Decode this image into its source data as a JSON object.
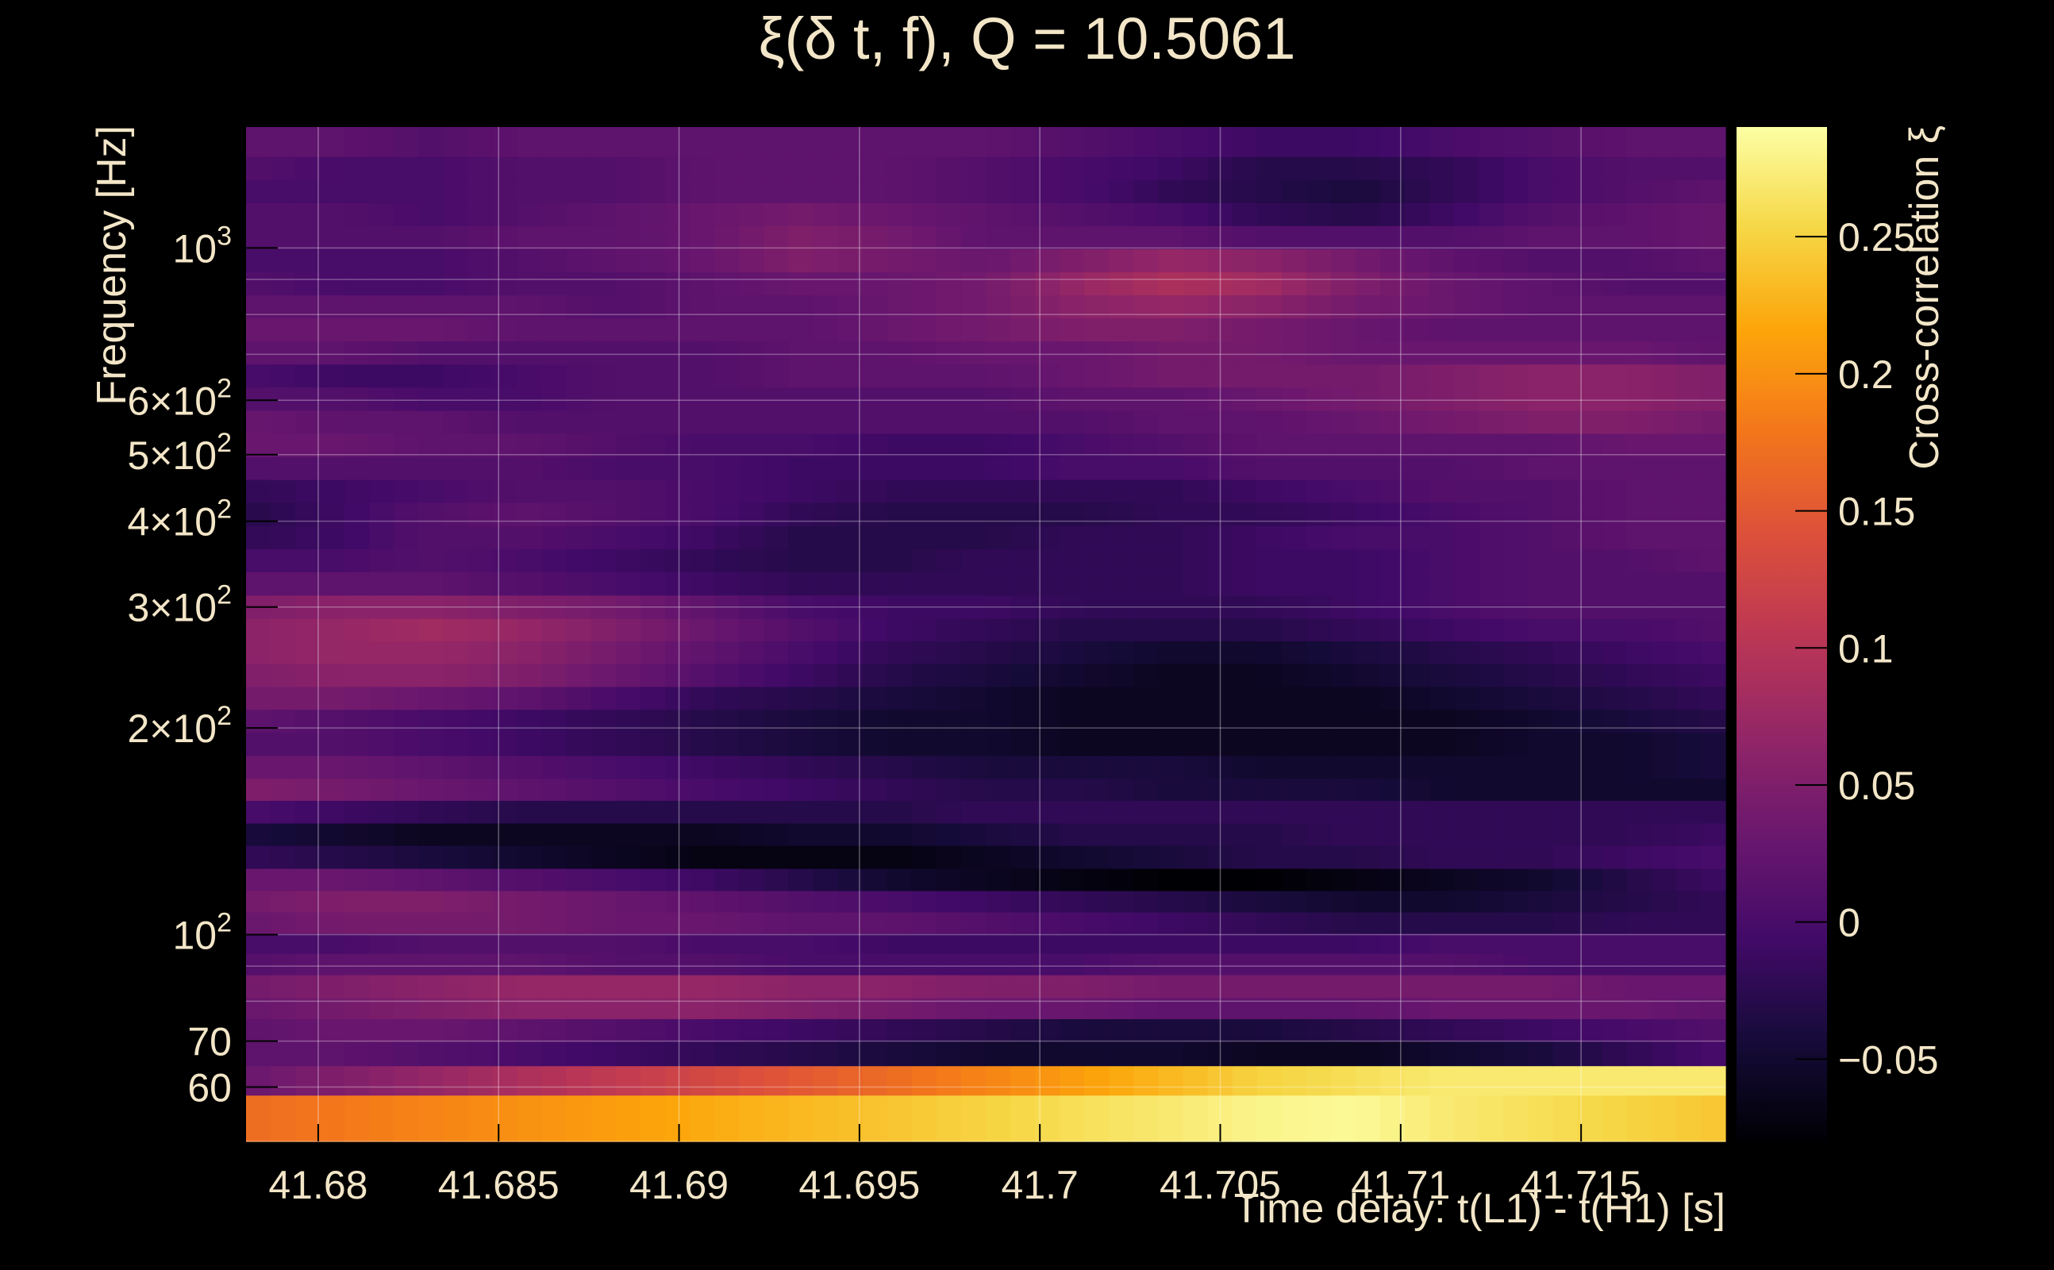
{
  "chart_data": {
    "type": "heatmap",
    "title": "ξ(δ t, f), Q = 10.5061",
    "xlabel": "Time delay: t(L1) - t(H1) [s]",
    "ylabel": "Frequency [Hz]",
    "colorbar_label": "Cross-correlation ξ",
    "x_range": [
      41.678,
      41.719
    ],
    "y_range": [
      50,
      1500
    ],
    "y_scale": "log",
    "color_range": [
      -0.08,
      0.29
    ],
    "grid": true,
    "colormap": "inferno",
    "x_ticks": [
      {
        "value": 41.68,
        "label": "41.68"
      },
      {
        "value": 41.685,
        "label": "41.685"
      },
      {
        "value": 41.69,
        "label": "41.69"
      },
      {
        "value": 41.695,
        "label": "41.695"
      },
      {
        "value": 41.7,
        "label": "41.7"
      },
      {
        "value": 41.705,
        "label": "41.705"
      },
      {
        "value": 41.71,
        "label": "41.71"
      },
      {
        "value": 41.715,
        "label": "41.715"
      }
    ],
    "y_ticks": [
      {
        "value": 60,
        "base": "60",
        "exp": ""
      },
      {
        "value": 70,
        "base": "70",
        "exp": ""
      },
      {
        "value": 100,
        "base": "10",
        "exp": "2"
      },
      {
        "value": 200,
        "base": "2×10",
        "exp": "2"
      },
      {
        "value": 300,
        "base": "3×10",
        "exp": "2"
      },
      {
        "value": 400,
        "base": "4×10",
        "exp": "2"
      },
      {
        "value": 500,
        "base": "5×10",
        "exp": "2"
      },
      {
        "value": 600,
        "base": "6×10",
        "exp": "2"
      },
      {
        "value": 1000,
        "base": "10",
        "exp": "3"
      }
    ],
    "color_ticks": [
      {
        "value": -0.05,
        "label": "−0.05"
      },
      {
        "value": 0,
        "label": "0"
      },
      {
        "value": 0.05,
        "label": "0.05"
      },
      {
        "value": 0.1,
        "label": "0.1"
      },
      {
        "value": 0.15,
        "label": "0.15"
      },
      {
        "value": 0.2,
        "label": "0.2"
      },
      {
        "value": 0.25,
        "label": "0.25"
      }
    ],
    "frequency_rows": [
      {
        "f": 55,
        "v": [
          0.17,
          0.18,
          0.19,
          0.2,
          0.21,
          0.22,
          0.23,
          0.24,
          0.25,
          0.26,
          0.27,
          0.28,
          0.285,
          0.27,
          0.26,
          0.25,
          0.24
        ]
      },
      {
        "f": 62,
        "v": [
          0.03,
          0.05,
          0.07,
          0.09,
          0.11,
          0.13,
          0.15,
          0.17,
          0.19,
          0.21,
          0.23,
          0.25,
          0.26,
          0.27,
          0.27,
          0.27,
          0.27
        ]
      },
      {
        "f": 67,
        "v": [
          0.02,
          0.02,
          0.01,
          0.0,
          -0.01,
          -0.02,
          -0.03,
          -0.04,
          -0.05,
          -0.05,
          -0.05,
          -0.06,
          -0.06,
          -0.05,
          -0.04,
          -0.02,
          0.0
        ]
      },
      {
        "f": 73,
        "v": [
          0.02,
          0.03,
          0.03,
          0.02,
          0.01,
          0.0,
          -0.01,
          -0.02,
          -0.03,
          -0.04,
          -0.04,
          -0.04,
          -0.03,
          -0.02,
          -0.01,
          0.0,
          0.01
        ]
      },
      {
        "f": 78,
        "v": [
          0.03,
          0.04,
          0.05,
          0.06,
          0.06,
          0.06,
          0.05,
          0.04,
          0.03,
          0.03,
          0.02,
          0.02,
          0.02,
          0.03,
          0.03,
          0.03,
          0.02
        ]
      },
      {
        "f": 84,
        "v": [
          0.04,
          0.05,
          0.06,
          0.07,
          0.07,
          0.07,
          0.06,
          0.06,
          0.05,
          0.05,
          0.04,
          0.04,
          0.04,
          0.04,
          0.04,
          0.03,
          0.03
        ]
      },
      {
        "f": 91,
        "v": [
          0.01,
          0.02,
          0.02,
          0.02,
          0.01,
          0.01,
          0.0,
          0.0,
          0.0,
          0.0,
          0.01,
          0.01,
          0.01,
          0.01,
          0.0,
          0.0,
          0.0
        ]
      },
      {
        "f": 97,
        "v": [
          0.0,
          0.0,
          0.01,
          0.01,
          0.01,
          0.0,
          0.0,
          -0.01,
          -0.01,
          -0.01,
          -0.01,
          -0.01,
          -0.01,
          0.0,
          0.0,
          0.0,
          0.0
        ]
      },
      {
        "f": 104,
        "v": [
          0.03,
          0.04,
          0.04,
          0.04,
          0.03,
          0.03,
          0.02,
          0.02,
          0.01,
          0.0,
          -0.01,
          -0.02,
          -0.03,
          -0.03,
          -0.03,
          -0.02,
          -0.02
        ]
      },
      {
        "f": 112,
        "v": [
          0.04,
          0.05,
          0.05,
          0.04,
          0.03,
          0.02,
          0.01,
          0.0,
          -0.01,
          -0.02,
          -0.03,
          -0.04,
          -0.05,
          -0.05,
          -0.04,
          -0.03,
          -0.02
        ]
      },
      {
        "f": 120,
        "v": [
          0.03,
          0.03,
          0.02,
          0.01,
          0.0,
          -0.01,
          -0.03,
          -0.05,
          -0.06,
          -0.07,
          -0.08,
          -0.08,
          -0.07,
          -0.06,
          -0.05,
          -0.03,
          -0.01
        ]
      },
      {
        "f": 130,
        "v": [
          -0.02,
          -0.03,
          -0.04,
          -0.05,
          -0.06,
          -0.07,
          -0.07,
          -0.07,
          -0.06,
          -0.05,
          -0.04,
          -0.03,
          -0.03,
          -0.02,
          -0.02,
          -0.01,
          0.0
        ]
      },
      {
        "f": 140,
        "v": [
          -0.04,
          -0.05,
          -0.06,
          -0.06,
          -0.06,
          -0.06,
          -0.05,
          -0.05,
          -0.04,
          -0.03,
          -0.03,
          -0.03,
          -0.02,
          -0.02,
          -0.02,
          -0.02,
          -0.01
        ]
      },
      {
        "f": 151,
        "v": [
          0.0,
          -0.01,
          -0.02,
          -0.03,
          -0.03,
          -0.03,
          -0.03,
          -0.03,
          -0.02,
          -0.02,
          -0.02,
          -0.02,
          -0.02,
          -0.02,
          -0.02,
          -0.02,
          -0.02
        ]
      },
      {
        "f": 163,
        "v": [
          0.05,
          0.04,
          0.03,
          0.02,
          0.01,
          0.0,
          -0.01,
          -0.02,
          -0.03,
          -0.03,
          -0.04,
          -0.04,
          -0.04,
          -0.05,
          -0.05,
          -0.05,
          -0.05
        ]
      },
      {
        "f": 175,
        "v": [
          0.03,
          0.03,
          0.02,
          0.01,
          0.0,
          -0.01,
          -0.02,
          -0.03,
          -0.04,
          -0.04,
          -0.04,
          -0.05,
          -0.05,
          -0.05,
          -0.05,
          -0.05,
          -0.04
        ]
      },
      {
        "f": 190,
        "v": [
          0.01,
          0.01,
          0.0,
          -0.01,
          -0.02,
          -0.03,
          -0.04,
          -0.05,
          -0.05,
          -0.06,
          -0.06,
          -0.06,
          -0.06,
          -0.06,
          -0.05,
          -0.05,
          -0.04
        ]
      },
      {
        "f": 205,
        "v": [
          0.02,
          0.01,
          0.0,
          -0.01,
          -0.02,
          -0.03,
          -0.04,
          -0.05,
          -0.05,
          -0.06,
          -0.06,
          -0.06,
          -0.06,
          -0.06,
          -0.05,
          -0.04,
          -0.03
        ]
      },
      {
        "f": 221,
        "v": [
          0.04,
          0.04,
          0.03,
          0.02,
          0.0,
          -0.02,
          -0.03,
          -0.04,
          -0.05,
          -0.06,
          -0.06,
          -0.06,
          -0.06,
          -0.05,
          -0.04,
          -0.03,
          -0.02
        ]
      },
      {
        "f": 239,
        "v": [
          0.05,
          0.06,
          0.06,
          0.05,
          0.03,
          0.01,
          -0.01,
          -0.03,
          -0.04,
          -0.05,
          -0.06,
          -0.06,
          -0.05,
          -0.04,
          -0.03,
          -0.02,
          -0.01
        ]
      },
      {
        "f": 258,
        "v": [
          0.06,
          0.07,
          0.07,
          0.06,
          0.04,
          0.02,
          0.0,
          -0.02,
          -0.03,
          -0.04,
          -0.05,
          -0.05,
          -0.04,
          -0.03,
          -0.02,
          -0.01,
          0.0
        ]
      },
      {
        "f": 278,
        "v": [
          0.06,
          0.07,
          0.08,
          0.07,
          0.05,
          0.03,
          0.01,
          -0.01,
          -0.02,
          -0.03,
          -0.03,
          -0.03,
          -0.02,
          -0.01,
          0.0,
          0.0,
          0.01
        ]
      },
      {
        "f": 300,
        "v": [
          0.05,
          0.06,
          0.06,
          0.05,
          0.04,
          0.02,
          0.0,
          -0.01,
          -0.01,
          -0.02,
          -0.02,
          -0.02,
          -0.01,
          0.0,
          0.01,
          0.01,
          0.01
        ]
      },
      {
        "f": 325,
        "v": [
          0.02,
          0.02,
          0.02,
          0.01,
          0.0,
          -0.01,
          -0.02,
          -0.02,
          -0.02,
          -0.02,
          -0.02,
          -0.01,
          -0.01,
          0.0,
          0.01,
          0.01,
          0.01
        ]
      },
      {
        "f": 351,
        "v": [
          0.0,
          0.0,
          0.01,
          0.0,
          -0.01,
          -0.02,
          -0.03,
          -0.03,
          -0.02,
          -0.02,
          -0.02,
          -0.01,
          -0.01,
          0.0,
          0.01,
          0.01,
          0.02
        ]
      },
      {
        "f": 379,
        "v": [
          -0.02,
          -0.01,
          0.01,
          0.01,
          0.0,
          -0.01,
          -0.03,
          -0.03,
          -0.03,
          -0.02,
          -0.02,
          -0.01,
          0.0,
          0.0,
          0.01,
          0.02,
          0.02
        ]
      },
      {
        "f": 410,
        "v": [
          -0.03,
          -0.01,
          0.01,
          0.02,
          0.01,
          0.0,
          -0.02,
          -0.03,
          -0.03,
          -0.03,
          -0.02,
          -0.02,
          -0.01,
          0.0,
          0.01,
          0.02,
          0.02
        ]
      },
      {
        "f": 443,
        "v": [
          -0.02,
          -0.01,
          0.0,
          0.01,
          0.01,
          0.0,
          -0.01,
          -0.02,
          -0.02,
          -0.02,
          -0.02,
          -0.01,
          0.0,
          0.01,
          0.01,
          0.02,
          0.02
        ]
      },
      {
        "f": 478,
        "v": [
          0.01,
          0.01,
          0.01,
          0.01,
          0.0,
          0.0,
          -0.01,
          -0.01,
          -0.01,
          0.0,
          0.0,
          0.01,
          0.01,
          0.01,
          0.02,
          0.02,
          0.02
        ]
      },
      {
        "f": 517,
        "v": [
          0.03,
          0.03,
          0.02,
          0.02,
          0.01,
          0.0,
          0.0,
          -0.01,
          -0.01,
          0.0,
          0.01,
          0.02,
          0.02,
          0.02,
          0.02,
          0.03,
          0.03
        ]
      },
      {
        "f": 558,
        "v": [
          0.03,
          0.02,
          0.02,
          0.01,
          0.01,
          0.01,
          0.01,
          0.01,
          0.01,
          0.01,
          0.02,
          0.02,
          0.03,
          0.04,
          0.05,
          0.05,
          0.04
        ]
      },
      {
        "f": 603,
        "v": [
          0.01,
          0.01,
          0.0,
          0.0,
          0.01,
          0.01,
          0.01,
          0.01,
          0.01,
          0.02,
          0.02,
          0.03,
          0.04,
          0.05,
          0.06,
          0.06,
          0.05
        ]
      },
      {
        "f": 652,
        "v": [
          0.0,
          -0.01,
          -0.01,
          0.0,
          0.01,
          0.01,
          0.02,
          0.02,
          0.02,
          0.03,
          0.04,
          0.04,
          0.04,
          0.05,
          0.06,
          0.06,
          0.05
        ]
      },
      {
        "f": 704,
        "v": [
          0.02,
          0.02,
          0.01,
          0.01,
          0.01,
          0.01,
          0.02,
          0.02,
          0.03,
          0.03,
          0.04,
          0.04,
          0.03,
          0.03,
          0.03,
          0.03,
          0.02
        ]
      },
      {
        "f": 761,
        "v": [
          0.03,
          0.03,
          0.03,
          0.02,
          0.02,
          0.02,
          0.02,
          0.03,
          0.04,
          0.05,
          0.05,
          0.04,
          0.03,
          0.02,
          0.02,
          0.02,
          0.02
        ]
      },
      {
        "f": 822,
        "v": [
          0.02,
          0.02,
          0.02,
          0.02,
          0.01,
          0.02,
          0.02,
          0.03,
          0.04,
          0.06,
          0.07,
          0.06,
          0.04,
          0.03,
          0.02,
          0.02,
          0.02
        ]
      },
      {
        "f": 888,
        "v": [
          0.01,
          0.0,
          0.0,
          0.01,
          0.01,
          0.02,
          0.03,
          0.03,
          0.04,
          0.07,
          0.09,
          0.08,
          0.05,
          0.03,
          0.02,
          0.01,
          0.01
        ]
      },
      {
        "f": 959,
        "v": [
          0.0,
          0.0,
          0.0,
          0.01,
          0.02,
          0.03,
          0.05,
          0.04,
          0.03,
          0.05,
          0.07,
          0.06,
          0.04,
          0.02,
          0.01,
          0.01,
          0.02
        ]
      },
      {
        "f": 1037,
        "v": [
          0.01,
          0.01,
          0.01,
          0.02,
          0.02,
          0.03,
          0.05,
          0.04,
          0.02,
          0.02,
          0.02,
          0.01,
          0.01,
          0.01,
          0.02,
          0.02,
          0.03
        ]
      },
      {
        "f": 1120,
        "v": [
          0.01,
          0.01,
          0.0,
          0.01,
          0.02,
          0.03,
          0.04,
          0.03,
          0.02,
          0.01,
          0.0,
          -0.02,
          -0.03,
          -0.01,
          0.01,
          0.02,
          0.03
        ]
      },
      {
        "f": 1210,
        "v": [
          0.0,
          0.0,
          0.0,
          0.01,
          0.01,
          0.02,
          0.02,
          0.02,
          0.01,
          0.0,
          -0.02,
          -0.03,
          -0.04,
          -0.02,
          0.0,
          0.01,
          0.02
        ]
      },
      {
        "f": 1307,
        "v": [
          0.01,
          0.0,
          0.0,
          0.01,
          0.01,
          0.02,
          0.02,
          0.02,
          0.01,
          0.0,
          -0.01,
          -0.03,
          -0.03,
          -0.02,
          0.0,
          0.01,
          0.01
        ]
      },
      {
        "f": 1412,
        "v": [
          0.02,
          0.02,
          0.01,
          0.02,
          0.02,
          0.02,
          0.02,
          0.02,
          0.02,
          0.01,
          0.0,
          -0.01,
          -0.01,
          0.0,
          0.01,
          0.02,
          0.02
        ]
      }
    ]
  }
}
